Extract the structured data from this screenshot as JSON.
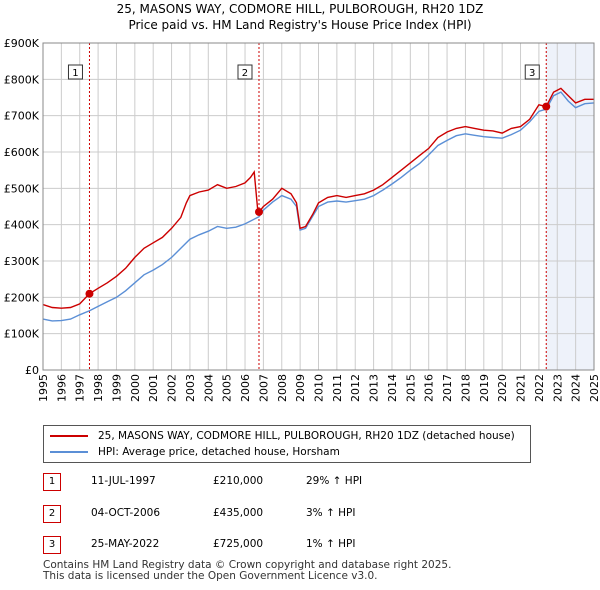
{
  "header": {
    "title": "25, MASONS WAY, CODMORE HILL, PULBOROUGH, RH20 1DZ",
    "subtitle": "Price paid vs. HM Land Registry's House Price Index (HPI)"
  },
  "legend": {
    "property_label": "25, MASONS WAY, CODMORE HILL, PULBOROUGH, RH20 1DZ (detached house)",
    "hpi_label": "HPI: Average price, detached house, Horsham"
  },
  "sales": [
    {
      "num": "1",
      "date": "11-JUL-1997",
      "price": "£210,000",
      "hpi": "29% ↑ HPI"
    },
    {
      "num": "2",
      "date": "04-OCT-2006",
      "price": "£435,000",
      "hpi": "3% ↑ HPI"
    },
    {
      "num": "3",
      "date": "25-MAY-2022",
      "price": "£725,000",
      "hpi": "1% ↑ HPI"
    }
  ],
  "footer": {
    "line1": "Contains HM Land Registry data © Crown copyright and database right 2025.",
    "line2": "This data is licensed under the Open Government Licence v3.0."
  },
  "colors": {
    "property": "#cc0000",
    "hpi": "#5b8fd6",
    "shade": "#dde6f5",
    "grid": "#cccccc"
  },
  "chart_data": {
    "type": "line",
    "title": "25, MASONS WAY, CODMORE HILL, PULBOROUGH, RH20 1DZ",
    "subtitle": "Price paid vs. HM Land Registry's House Price Index (HPI)",
    "xlabel": "",
    "ylabel": "",
    "xlim": [
      1995,
      2025
    ],
    "ylim": [
      0,
      900000
    ],
    "x_ticks": [
      1995,
      1996,
      1997,
      1998,
      1999,
      2000,
      2001,
      2002,
      2003,
      2004,
      2005,
      2006,
      2007,
      2008,
      2009,
      2010,
      2011,
      2012,
      2013,
      2014,
      2015,
      2016,
      2017,
      2018,
      2019,
      2020,
      2021,
      2022,
      2023,
      2024,
      2025
    ],
    "y_ticks": [
      0,
      100000,
      200000,
      300000,
      400000,
      500000,
      600000,
      700000,
      800000,
      900000
    ],
    "y_tick_labels": [
      "£0",
      "£100K",
      "£200K",
      "£300K",
      "£400K",
      "£500K",
      "£600K",
      "£700K",
      "£800K",
      "£900K"
    ],
    "series": [
      {
        "name": "25, MASONS WAY, CODMORE HILL, PULBOROUGH, RH20 1DZ (detached house)",
        "color": "#cc0000",
        "points": [
          [
            1995.0,
            180000
          ],
          [
            1995.5,
            172000
          ],
          [
            1996.0,
            170000
          ],
          [
            1996.5,
            172000
          ],
          [
            1997.0,
            182000
          ],
          [
            1997.53,
            210000
          ],
          [
            1998.0,
            225000
          ],
          [
            1998.5,
            240000
          ],
          [
            1999.0,
            258000
          ],
          [
            1999.5,
            280000
          ],
          [
            2000.0,
            310000
          ],
          [
            2000.5,
            335000
          ],
          [
            2001.0,
            350000
          ],
          [
            2001.5,
            365000
          ],
          [
            2002.0,
            390000
          ],
          [
            2002.5,
            420000
          ],
          [
            2002.8,
            460000
          ],
          [
            2003.0,
            480000
          ],
          [
            2003.5,
            490000
          ],
          [
            2004.0,
            495000
          ],
          [
            2004.5,
            510000
          ],
          [
            2005.0,
            500000
          ],
          [
            2005.5,
            505000
          ],
          [
            2006.0,
            515000
          ],
          [
            2006.3,
            530000
          ],
          [
            2006.5,
            545000
          ],
          [
            2006.7,
            435000
          ],
          [
            2006.76,
            435000
          ],
          [
            2007.0,
            450000
          ],
          [
            2007.5,
            470000
          ],
          [
            2008.0,
            500000
          ],
          [
            2008.5,
            485000
          ],
          [
            2008.8,
            460000
          ],
          [
            2009.0,
            390000
          ],
          [
            2009.3,
            395000
          ],
          [
            2009.7,
            430000
          ],
          [
            2010.0,
            460000
          ],
          [
            2010.5,
            475000
          ],
          [
            2011.0,
            480000
          ],
          [
            2011.5,
            475000
          ],
          [
            2012.0,
            480000
          ],
          [
            2012.5,
            485000
          ],
          [
            2013.0,
            495000
          ],
          [
            2013.5,
            510000
          ],
          [
            2014.0,
            530000
          ],
          [
            2014.5,
            550000
          ],
          [
            2015.0,
            570000
          ],
          [
            2015.5,
            590000
          ],
          [
            2016.0,
            610000
          ],
          [
            2016.5,
            640000
          ],
          [
            2017.0,
            655000
          ],
          [
            2017.5,
            665000
          ],
          [
            2018.0,
            670000
          ],
          [
            2018.5,
            665000
          ],
          [
            2019.0,
            660000
          ],
          [
            2019.5,
            658000
          ],
          [
            2020.0,
            652000
          ],
          [
            2020.5,
            665000
          ],
          [
            2021.0,
            670000
          ],
          [
            2021.5,
            690000
          ],
          [
            2022.0,
            730000
          ],
          [
            2022.4,
            725000
          ],
          [
            2022.8,
            765000
          ],
          [
            2023.2,
            775000
          ],
          [
            2023.6,
            755000
          ],
          [
            2024.0,
            735000
          ],
          [
            2024.5,
            745000
          ],
          [
            2025.0,
            745000
          ]
        ]
      },
      {
        "name": "HPI: Average price, detached house, Horsham",
        "color": "#5b8fd6",
        "points": [
          [
            1995.0,
            140000
          ],
          [
            1995.5,
            135000
          ],
          [
            1996.0,
            136000
          ],
          [
            1996.5,
            140000
          ],
          [
            1997.0,
            152000
          ],
          [
            1997.53,
            163000
          ],
          [
            1998.0,
            175000
          ],
          [
            1998.5,
            188000
          ],
          [
            1999.0,
            200000
          ],
          [
            1999.5,
            218000
          ],
          [
            2000.0,
            240000
          ],
          [
            2000.5,
            262000
          ],
          [
            2001.0,
            275000
          ],
          [
            2001.5,
            290000
          ],
          [
            2002.0,
            310000
          ],
          [
            2002.5,
            335000
          ],
          [
            2003.0,
            360000
          ],
          [
            2003.5,
            372000
          ],
          [
            2004.0,
            382000
          ],
          [
            2004.5,
            395000
          ],
          [
            2005.0,
            390000
          ],
          [
            2005.5,
            393000
          ],
          [
            2006.0,
            402000
          ],
          [
            2006.76,
            422000
          ],
          [
            2007.0,
            440000
          ],
          [
            2007.5,
            462000
          ],
          [
            2008.0,
            480000
          ],
          [
            2008.5,
            470000
          ],
          [
            2008.8,
            450000
          ],
          [
            2009.0,
            385000
          ],
          [
            2009.3,
            390000
          ],
          [
            2009.7,
            425000
          ],
          [
            2010.0,
            450000
          ],
          [
            2010.5,
            462000
          ],
          [
            2011.0,
            465000
          ],
          [
            2011.5,
            462000
          ],
          [
            2012.0,
            466000
          ],
          [
            2012.5,
            470000
          ],
          [
            2013.0,
            480000
          ],
          [
            2013.5,
            495000
          ],
          [
            2014.0,
            512000
          ],
          [
            2014.5,
            530000
          ],
          [
            2015.0,
            550000
          ],
          [
            2015.5,
            568000
          ],
          [
            2016.0,
            592000
          ],
          [
            2016.5,
            618000
          ],
          [
            2017.0,
            632000
          ],
          [
            2017.5,
            645000
          ],
          [
            2018.0,
            650000
          ],
          [
            2018.5,
            646000
          ],
          [
            2019.0,
            642000
          ],
          [
            2019.5,
            640000
          ],
          [
            2020.0,
            638000
          ],
          [
            2020.5,
            648000
          ],
          [
            2021.0,
            660000
          ],
          [
            2021.5,
            683000
          ],
          [
            2022.0,
            712000
          ],
          [
            2022.4,
            718000
          ],
          [
            2022.8,
            755000
          ],
          [
            2023.2,
            765000
          ],
          [
            2023.6,
            740000
          ],
          [
            2024.0,
            722000
          ],
          [
            2024.5,
            733000
          ],
          [
            2025.0,
            735000
          ]
        ]
      }
    ],
    "sales": [
      {
        "label": "1",
        "x": 1997.53,
        "y": 210000
      },
      {
        "label": "2",
        "x": 2006.76,
        "y": 435000
      },
      {
        "label": "3",
        "x": 2022.4,
        "y": 725000
      }
    ]
  }
}
